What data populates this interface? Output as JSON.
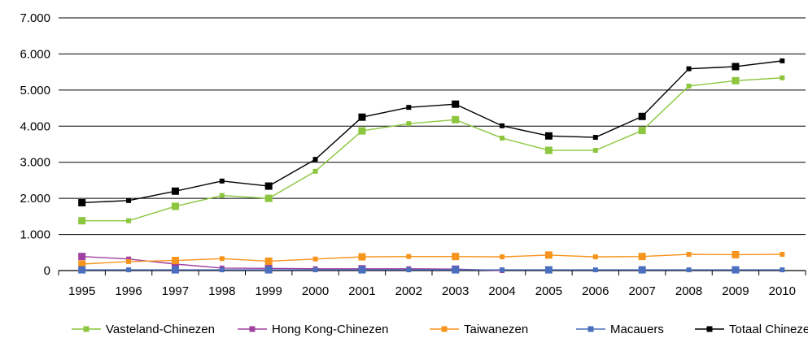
{
  "chart_data": {
    "type": "line",
    "title": "",
    "xlabel": "",
    "ylabel": "",
    "categories": [
      "1995",
      "1996",
      "1997",
      "1998",
      "1999",
      "2000",
      "2001",
      "2002",
      "2003",
      "2004",
      "2005",
      "2006",
      "2007",
      "2008",
      "2009",
      "2010"
    ],
    "ylim": [
      0,
      7000
    ],
    "yticks": [
      0,
      1000,
      2000,
      3000,
      4000,
      5000,
      6000,
      7000
    ],
    "ytick_labels": [
      "0",
      "1.000",
      "2.000",
      "3.000",
      "4.000",
      "5.000",
      "6.000",
      "7.000"
    ],
    "grid": "horizontal",
    "legend_position": "bottom",
    "series": [
      {
        "name": "Vasteland-Chinezen",
        "color": "#8cc63f",
        "values": [
          1380,
          1380,
          1780,
          2080,
          2000,
          2750,
          3870,
          4070,
          4180,
          3670,
          3330,
          3330,
          3880,
          5110,
          5260,
          5340
        ]
      },
      {
        "name": "Hong Kong-Chinezen",
        "color": "#a040a0",
        "values": [
          390,
          320,
          180,
          70,
          60,
          50,
          50,
          50,
          40,
          0,
          null,
          null,
          null,
          null,
          null,
          null
        ]
      },
      {
        "name": "Taiwanezen",
        "color": "#f7941d",
        "values": [
          180,
          250,
          280,
          330,
          260,
          320,
          380,
          390,
          390,
          380,
          430,
          380,
          390,
          450,
          440,
          450
        ]
      },
      {
        "name": "Macauers",
        "color": "#4a6fbf",
        "values": [
          20,
          20,
          20,
          20,
          20,
          20,
          20,
          20,
          20,
          20,
          20,
          20,
          20,
          20,
          20,
          20
        ]
      },
      {
        "name": "Totaal Chinezen",
        "color": "#000000",
        "values": [
          1880,
          1940,
          2200,
          2480,
          2340,
          3080,
          4250,
          4520,
          4610,
          4010,
          3730,
          3690,
          4270,
          5590,
          5650,
          5810
        ]
      }
    ]
  }
}
